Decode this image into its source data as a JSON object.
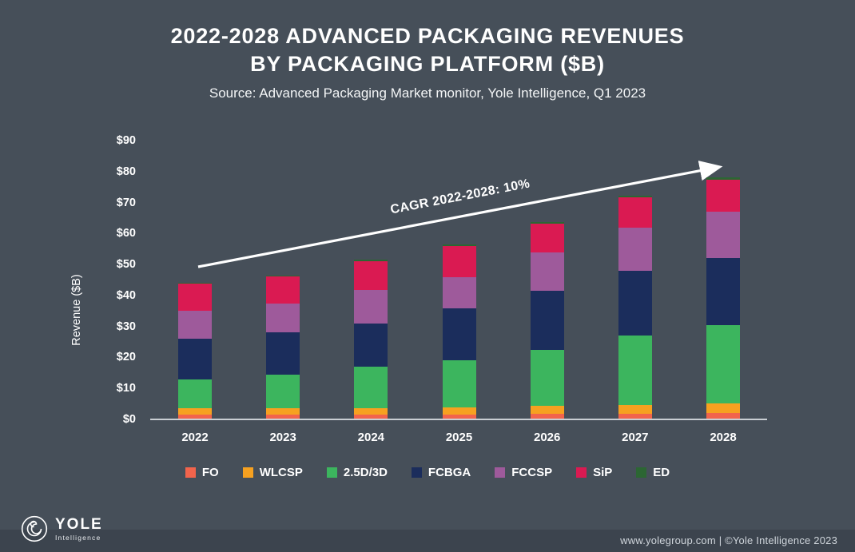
{
  "title": {
    "line1": "2022-2028 ADVANCED PACKAGING REVENUES",
    "line2": "BY PACKAGING PLATFORM ($B)",
    "subtitle": "Source: Advanced Packaging Market monitor, Yole Intelligence, Q1 2023"
  },
  "chart_data": {
    "type": "bar",
    "stacked": true,
    "title": "2022-2028 Advanced Packaging revenues by packaging platform ($B)",
    "xlabel": "",
    "ylabel": "Revenue ($B)",
    "ylim": [
      0,
      90
    ],
    "yticks": [
      "$0",
      "$10",
      "$20",
      "$30",
      "$40",
      "$50",
      "$60",
      "$70",
      "$80",
      "$90"
    ],
    "grid": false,
    "legend_position": "bottom",
    "categories": [
      "2022",
      "2023",
      "2024",
      "2025",
      "2026",
      "2027",
      "2028"
    ],
    "series": [
      {
        "name": "FO",
        "color": "#f2644c",
        "values": [
          1.5,
          1.5,
          1.5,
          1.6,
          1.8,
          1.9,
          2.1
        ]
      },
      {
        "name": "WLCSP",
        "color": "#f6a120",
        "values": [
          2.1,
          2.1,
          2.2,
          2.3,
          2.6,
          2.8,
          3.0
        ]
      },
      {
        "name": "2.5D/3D",
        "color": "#3cb55e",
        "values": [
          9.4,
          10.9,
          13.3,
          15.1,
          18.1,
          22.3,
          25.4
        ]
      },
      {
        "name": "FCBGA",
        "color": "#1b2d5c",
        "values": [
          13.0,
          13.5,
          14.0,
          16.9,
          19.0,
          21.0,
          21.5
        ]
      },
      {
        "name": "FCCSP",
        "color": "#9e5a9b",
        "values": [
          9.0,
          9.5,
          10.9,
          10.1,
          12.4,
          14.0,
          15.0
        ]
      },
      {
        "name": "SiP",
        "color": "#da1a52",
        "values": [
          8.9,
          8.7,
          9.2,
          10.0,
          9.2,
          9.7,
          10.5
        ]
      },
      {
        "name": "ED",
        "color": "#2c6633",
        "values": [
          0.3,
          0.3,
          0.4,
          0.4,
          0.5,
          0.6,
          0.7
        ]
      }
    ],
    "annotation": "CAGR 2022-2028: 10%",
    "annotation_color": "#ffffff"
  },
  "footer": {
    "logo_name": "YOLE",
    "logo_sub": "Intelligence",
    "credit": "www.yolegroup.com | ©Yole Intelligence 2023"
  },
  "colors": {
    "background": "#464f59",
    "footer_band": "#3c444e",
    "axis_line": "#c9ced3",
    "text": "#ffffff"
  }
}
